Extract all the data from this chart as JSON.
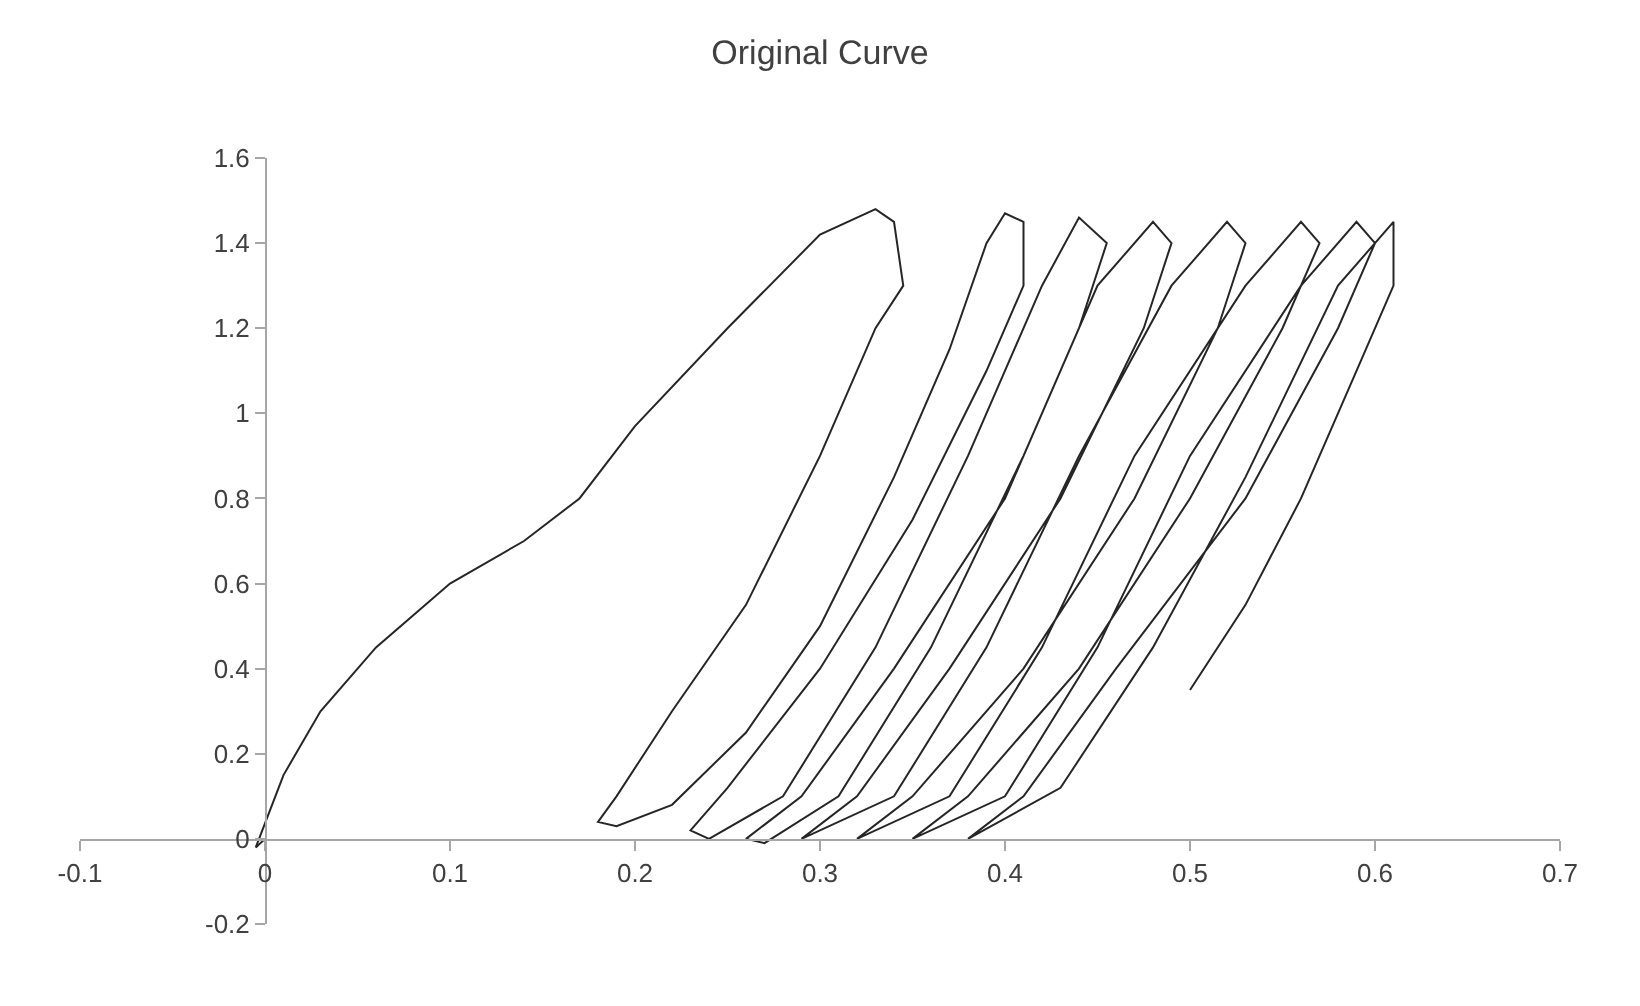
{
  "chart_data": {
    "type": "line",
    "title": "Original Curve",
    "x": [
      0,
      -0.005,
      0.01,
      0.03,
      0.06,
      0.1,
      0.14,
      0.17,
      0.2,
      0.25,
      0.3,
      0.33,
      0.34,
      0.345,
      0.33,
      0.3,
      0.26,
      0.22,
      0.19,
      0.18,
      0.19,
      0.22,
      0.26,
      0.3,
      0.34,
      0.37,
      0.39,
      0.4,
      0.41,
      0.41,
      0.39,
      0.35,
      0.3,
      0.25,
      0.23,
      0.24,
      0.28,
      0.33,
      0.38,
      0.42,
      0.44,
      0.455,
      0.44,
      0.4,
      0.34,
      0.29,
      0.26,
      0.27,
      0.31,
      0.36,
      0.41,
      0.45,
      0.48,
      0.49,
      0.475,
      0.43,
      0.37,
      0.32,
      0.29,
      0.34,
      0.39,
      0.44,
      0.49,
      0.52,
      0.53,
      0.515,
      0.47,
      0.41,
      0.35,
      0.32,
      0.37,
      0.42,
      0.47,
      0.53,
      0.56,
      0.57,
      0.55,
      0.5,
      0.44,
      0.38,
      0.35,
      0.4,
      0.45,
      0.5,
      0.56,
      0.59,
      0.6,
      0.58,
      0.53,
      0.46,
      0.41,
      0.38,
      0.43,
      0.48,
      0.53,
      0.58,
      0.61,
      0.61,
      0.59,
      0.56,
      0.53,
      0.5
    ],
    "series": [
      {
        "color": "#262626",
        "values": [
          0,
          -0.02,
          0.15,
          0.3,
          0.45,
          0.6,
          0.7,
          0.8,
          0.97,
          1.2,
          1.42,
          1.48,
          1.45,
          1.3,
          1.2,
          0.9,
          0.55,
          0.3,
          0.1,
          0.04,
          0.03,
          0.08,
          0.25,
          0.5,
          0.85,
          1.15,
          1.4,
          1.47,
          1.45,
          1.3,
          1.1,
          0.75,
          0.4,
          0.12,
          0.02,
          0,
          0.1,
          0.45,
          0.9,
          1.3,
          1.46,
          1.4,
          1.2,
          0.8,
          0.4,
          0.1,
          0,
          -0.01,
          0.1,
          0.45,
          0.9,
          1.3,
          1.45,
          1.4,
          1.2,
          0.8,
          0.4,
          0.1,
          0,
          0.1,
          0.45,
          0.9,
          1.3,
          1.45,
          1.4,
          1.2,
          0.8,
          0.4,
          0.1,
          0,
          0.1,
          0.45,
          0.9,
          1.3,
          1.45,
          1.4,
          1.2,
          0.8,
          0.4,
          0.1,
          0,
          0.1,
          0.45,
          0.9,
          1.3,
          1.45,
          1.4,
          1.2,
          0.8,
          0.4,
          0.1,
          0,
          0.12,
          0.45,
          0.85,
          1.3,
          1.45,
          1.3,
          1.1,
          0.8,
          0.55,
          0.35
        ]
      }
    ],
    "xlim": [
      -0.1,
      0.7
    ],
    "xticks": [
      -0.1,
      0,
      0.1,
      0.2,
      0.3,
      0.4,
      0.5,
      0.6,
      0.7
    ],
    "ylim": [
      -0.2,
      1.6
    ],
    "yticks": [
      -0.2,
      0,
      0.2,
      0.4,
      0.6,
      0.8,
      1,
      1.2,
      1.4,
      1.6
    ],
    "marker": "none",
    "line_style": "solid"
  }
}
